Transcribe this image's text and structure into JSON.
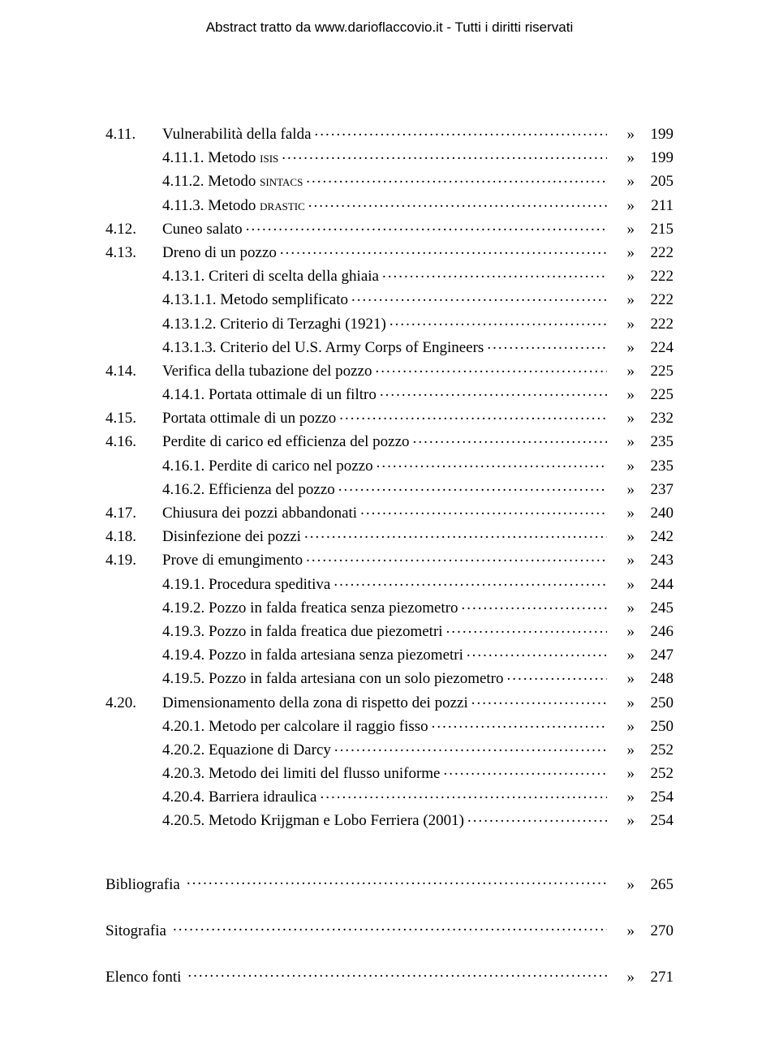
{
  "header": "Abstract tratto da www.darioflaccovio.it - Tutti i diritti riservati",
  "symbol": "»",
  "toc": [
    {
      "num": "4.11.",
      "indent": 0,
      "title": "Vulnerabilità della falda",
      "page": 199
    },
    {
      "num": "",
      "indent": 1,
      "title": "4.11.1. Metodo ",
      "suffix_sc": "isis",
      "page": 199
    },
    {
      "num": "",
      "indent": 1,
      "title": "4.11.2. Metodo ",
      "suffix_sc": "sintacs",
      "page": 205
    },
    {
      "num": "",
      "indent": 1,
      "title": "4.11.3. Metodo ",
      "suffix_sc": "drastic",
      "page": 211
    },
    {
      "num": "4.12.",
      "indent": 0,
      "title": "Cuneo salato",
      "page": 215
    },
    {
      "num": "4.13.",
      "indent": 0,
      "title": "Dreno di un pozzo",
      "page": 222
    },
    {
      "num": "",
      "indent": 1,
      "title": "4.13.1. Criteri di scelta della ghiaia",
      "page": 222
    },
    {
      "num": "",
      "indent": 1,
      "title": "4.13.1.1. Metodo semplificato",
      "page": 222
    },
    {
      "num": "",
      "indent": 1,
      "title": "4.13.1.2. Criterio di Terzaghi (1921)",
      "page": 222
    },
    {
      "num": "",
      "indent": 1,
      "title": "4.13.1.3. Criterio del U.S. Army Corps of Engineers",
      "page": 224
    },
    {
      "num": "4.14.",
      "indent": 0,
      "title": "Verifica della tubazione del pozzo",
      "page": 225
    },
    {
      "num": "",
      "indent": 1,
      "title": "4.14.1. Portata ottimale di un filtro",
      "page": 225
    },
    {
      "num": "4.15.",
      "indent": 0,
      "title": "Portata ottimale di un pozzo",
      "page": 232
    },
    {
      "num": "4.16.",
      "indent": 0,
      "title": "Perdite di carico ed efficienza del pozzo",
      "page": 235
    },
    {
      "num": "",
      "indent": 1,
      "title": "4.16.1. Perdite di carico nel pozzo",
      "page": 235
    },
    {
      "num": "",
      "indent": 1,
      "title": "4.16.2. Efficienza del pozzo",
      "page": 237
    },
    {
      "num": "4.17.",
      "indent": 0,
      "title": "Chiusura dei pozzi abbandonati",
      "page": 240
    },
    {
      "num": "4.18.",
      "indent": 0,
      "title": "Disinfezione dei pozzi",
      "page": 242
    },
    {
      "num": "4.19.",
      "indent": 0,
      "title": "Prove di emungimento",
      "page": 243
    },
    {
      "num": "",
      "indent": 1,
      "title": "4.19.1. Procedura speditiva",
      "page": 244
    },
    {
      "num": "",
      "indent": 1,
      "title": "4.19.2. Pozzo in falda freatica senza piezometro",
      "page": 245
    },
    {
      "num": "",
      "indent": 1,
      "title": "4.19.3. Pozzo in falda freatica due piezometri",
      "page": 246
    },
    {
      "num": "",
      "indent": 1,
      "title": "4.19.4. Pozzo in falda artesiana senza piezometri",
      "page": 247
    },
    {
      "num": "",
      "indent": 1,
      "title": "4.19.5. Pozzo in falda artesiana con un solo piezometro",
      "page": 248
    },
    {
      "num": "4.20.",
      "indent": 0,
      "title": "Dimensionamento della zona di rispetto dei pozzi",
      "page": 250
    },
    {
      "num": "",
      "indent": 1,
      "title": "4.20.1. Metodo per calcolare il raggio fisso",
      "page": 250
    },
    {
      "num": "",
      "indent": 1,
      "title": "4.20.2. Equazione di Darcy",
      "page": 252
    },
    {
      "num": "",
      "indent": 1,
      "title": "4.20.3. Metodo dei limiti del flusso uniforme",
      "page": 252
    },
    {
      "num": "",
      "indent": 1,
      "title": "4.20.4. Barriera idraulica",
      "page": 254
    },
    {
      "num": "",
      "indent": 1,
      "title": "4.20.5. Metodo Krijgman e Lobo Ferriera (2001)",
      "page": 254
    }
  ],
  "bottom": [
    {
      "label": "Bibliografia",
      "page": 265
    },
    {
      "label": "Sitografia",
      "page": 270
    },
    {
      "label": "Elenco fonti",
      "page": 271
    }
  ]
}
